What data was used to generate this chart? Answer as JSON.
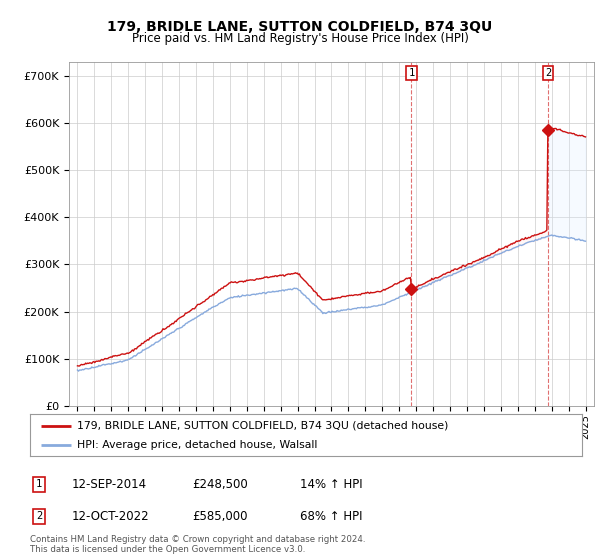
{
  "title": "179, BRIDLE LANE, SUTTON COLDFIELD, B74 3QU",
  "subtitle": "Price paid vs. HM Land Registry's House Price Index (HPI)",
  "title_fontsize": 10,
  "subtitle_fontsize": 8.5,
  "ylabel_ticks": [
    "£0",
    "£100K",
    "£200K",
    "£300K",
    "£400K",
    "£500K",
    "£600K",
    "£700K"
  ],
  "ytick_vals": [
    0,
    100000,
    200000,
    300000,
    400000,
    500000,
    600000,
    700000
  ],
  "ylim": [
    0,
    730000
  ],
  "xlim_start": 1994.5,
  "xlim_end": 2025.5,
  "sale1_year": 2014.72,
  "sale1_price": 248500,
  "sale1_label": "1",
  "sale1_date": "12-SEP-2014",
  "sale1_pct": "14%",
  "sale2_year": 2022.79,
  "sale2_price": 585000,
  "sale2_label": "2",
  "sale2_date": "12-OCT-2022",
  "sale2_pct": "68%",
  "hpi_color": "#88aadd",
  "hpi_fill_color": "#ddeeff",
  "price_color": "#cc1111",
  "grid_color": "#cccccc",
  "background_color": "#ffffff",
  "legend_label_price": "179, BRIDLE LANE, SUTTON COLDFIELD, B74 3QU (detached house)",
  "legend_label_hpi": "HPI: Average price, detached house, Walsall",
  "footer1": "Contains HM Land Registry data © Crown copyright and database right 2024.",
  "footer2": "This data is licensed under the Open Government Licence v3.0."
}
